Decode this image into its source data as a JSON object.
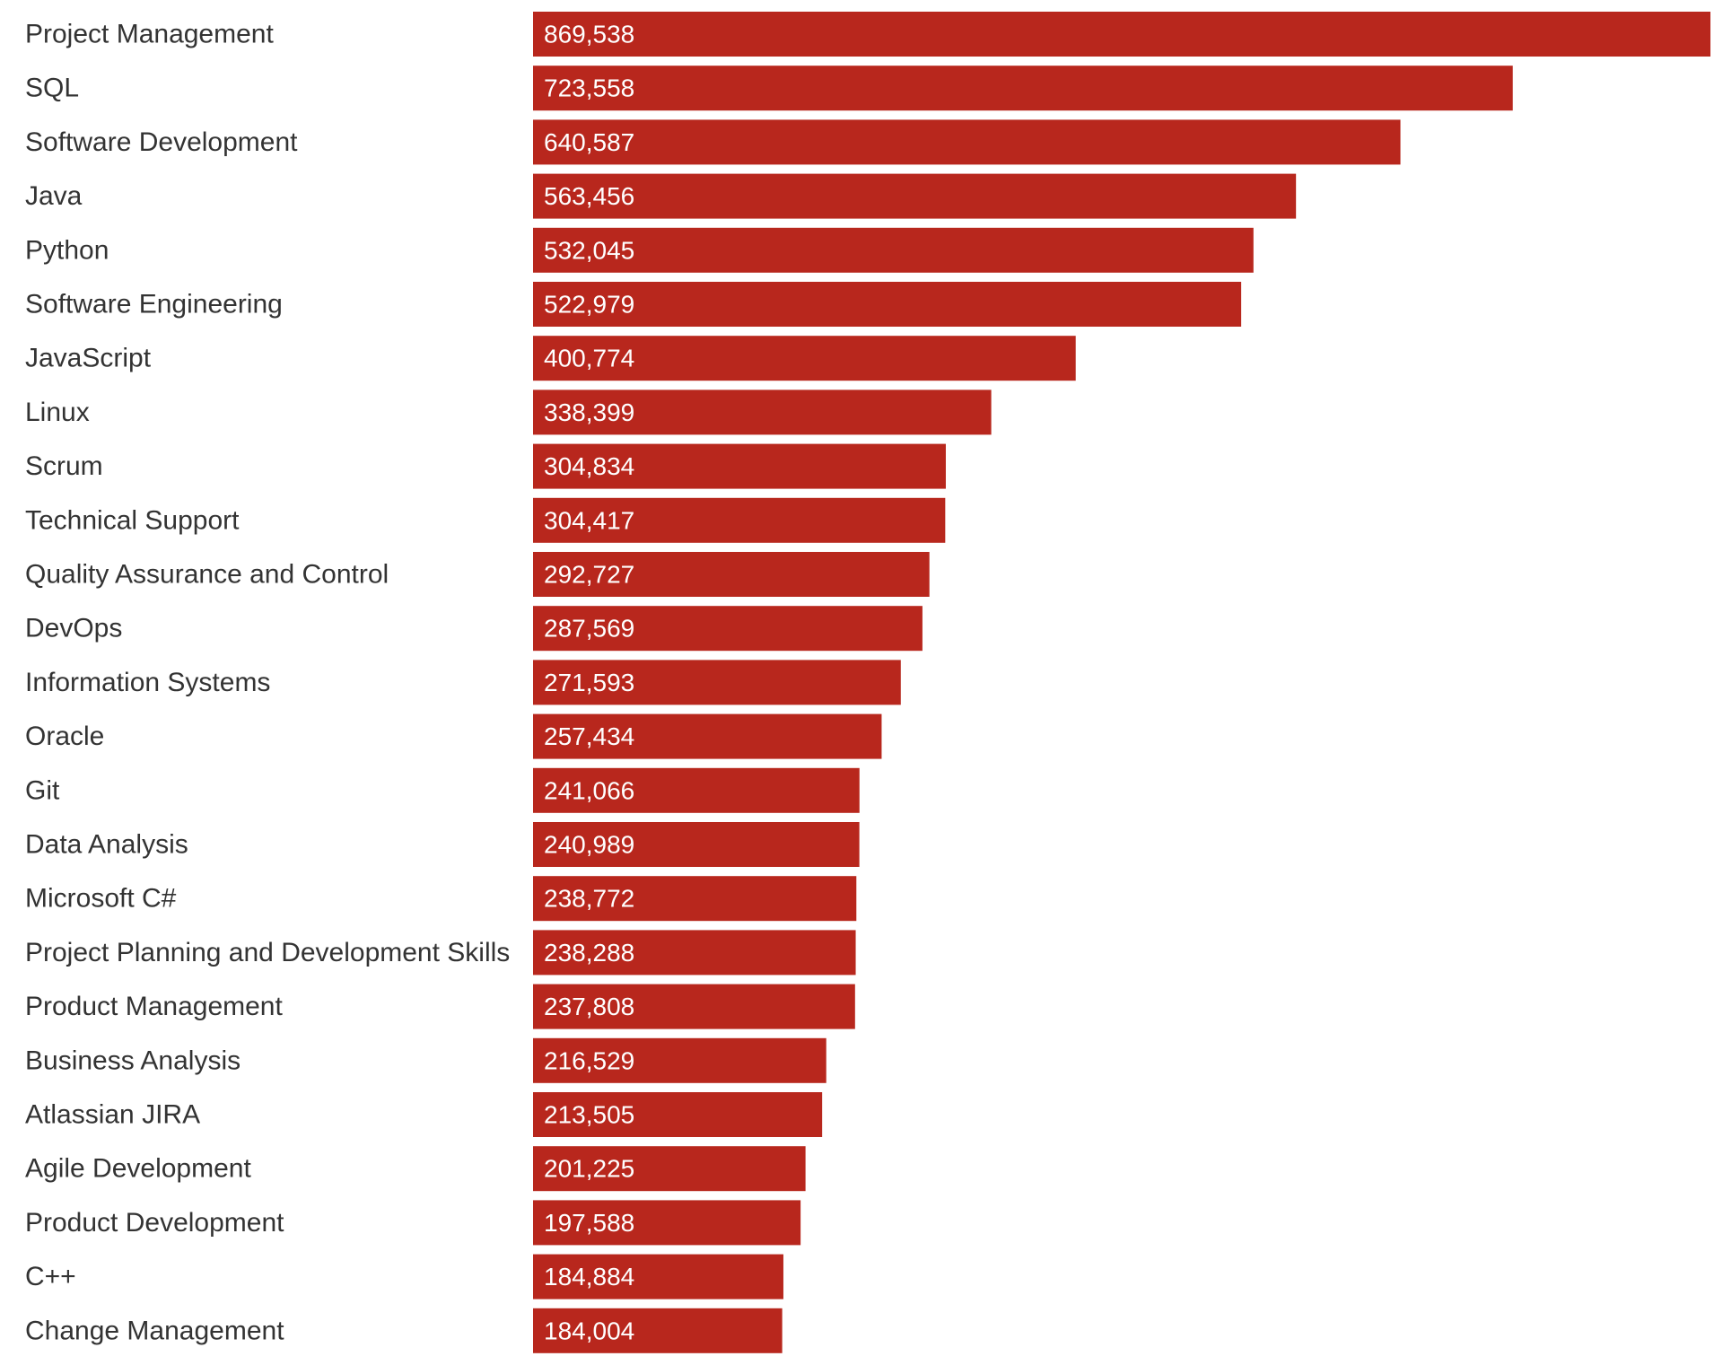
{
  "chart_data": {
    "type": "bar",
    "orientation": "horizontal",
    "categories": [
      "Project Management",
      "SQL",
      "Software Development",
      "Java",
      "Python",
      "Software Engineering",
      "JavaScript",
      "Linux",
      "Scrum",
      "Technical Support",
      "Quality Assurance and Control",
      "DevOps",
      "Information Systems",
      "Oracle",
      "Git",
      "Data Analysis",
      "Microsoft C#",
      "Project Planning and Development Skills",
      "Product Management",
      "Business Analysis",
      "Atlassian JIRA",
      "Agile Development",
      "Product Development",
      "C++",
      "Change Management"
    ],
    "values": [
      869538,
      723558,
      640587,
      563456,
      532045,
      522979,
      400774,
      338399,
      304834,
      304417,
      292727,
      287569,
      271593,
      257434,
      241066,
      240989,
      238772,
      238288,
      237808,
      216529,
      213505,
      201225,
      197588,
      184884,
      184004
    ],
    "value_labels": [
      "869,538",
      "723,558",
      "640,587",
      "563,456",
      "532,045",
      "522,979",
      "400,774",
      "338,399",
      "304,834",
      "304,417",
      "292,727",
      "287,569",
      "271,593",
      "257,434",
      "241,066",
      "240,989",
      "238,772",
      "238,288",
      "237,808",
      "216,529",
      "213,505",
      "201,225",
      "197,588",
      "184,884",
      "184,004"
    ],
    "title": "",
    "xlabel": "",
    "ylabel": "",
    "xlim": [
      0,
      869538
    ],
    "grid": false,
    "legend": "none",
    "bar_color": "#b8271d"
  }
}
